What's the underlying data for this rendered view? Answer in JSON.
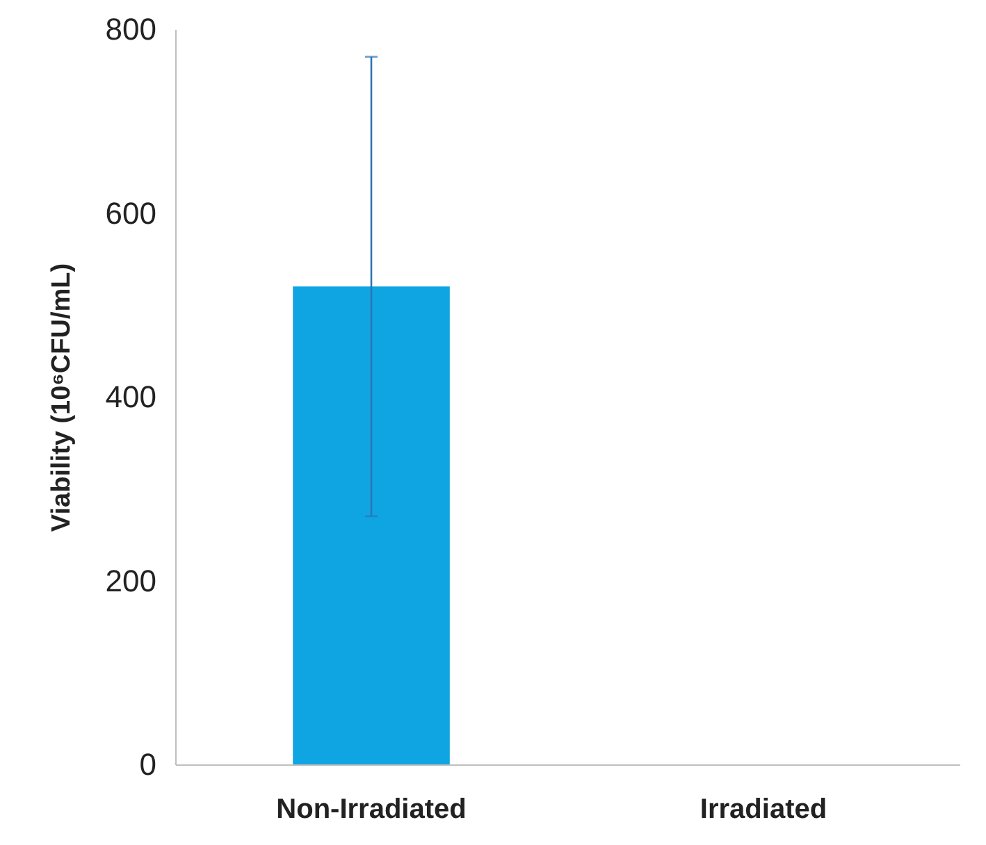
{
  "chart_data": {
    "type": "bar",
    "ylabel": "Viability (10⁶CFU/mL)",
    "categories": [
      "Non-Irradiated",
      "Irradiated"
    ],
    "values": [
      520,
      0
    ],
    "errors": [
      250,
      null
    ],
    "color": "#0ea5e2",
    "ylim": [
      0,
      800
    ],
    "yticks": [
      0,
      200,
      400,
      600,
      800
    ],
    "grid": false
  }
}
